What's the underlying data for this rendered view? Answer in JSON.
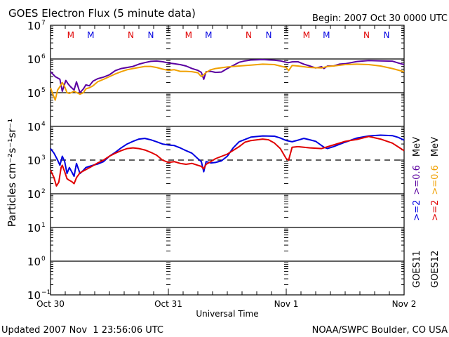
{
  "chart_data": {
    "type": "line",
    "title": "GOES Electron Flux (5 minute data)",
    "begin_label": "Begin: 2007 Oct 30 0000 UTC",
    "xlabel": "Universal Time",
    "ylabel": "Particles cm⁻²s⁻¹sr⁻¹",
    "x_unit": "days since 2007 Oct 30 0000 UTC",
    "xlim": [
      0,
      3
    ],
    "x_ticks": [
      {
        "value": 0,
        "label": "Oct 30"
      },
      {
        "value": 1,
        "label": "Oct 31"
      },
      {
        "value": 2,
        "label": "Nov 1"
      },
      {
        "value": 3,
        "label": "Nov 2"
      }
    ],
    "yscale": "log",
    "ylim_exponent": [
      -1,
      7
    ],
    "y_ticks": [
      {
        "exp": "7",
        "value": 10000000
      },
      {
        "exp": "6",
        "value": 1000000
      },
      {
        "exp": "5",
        "value": 100000
      },
      {
        "exp": "4",
        "value": 10000
      },
      {
        "exp": "3",
        "value": 1000
      },
      {
        "exp": "2",
        "value": 100
      },
      {
        "exp": "1",
        "value": 10
      },
      {
        "exp": "0",
        "value": 1
      },
      {
        "exp": "−1",
        "value": 0.1
      }
    ],
    "grid": "horizontal lines at each decade; dashed threshold at 1000",
    "threshold": {
      "value": 1000,
      "style": "dashed"
    },
    "annotations": [
      {
        "text": "M",
        "day": 0.35,
        "color": "#e00000"
      },
      {
        "text": "M",
        "day": 0.52,
        "color": "#0000e0"
      },
      {
        "text": "N",
        "day": 0.86,
        "color": "#e00000"
      },
      {
        "text": "N",
        "day": 1.03,
        "color": "#0000e0"
      },
      {
        "text": "M",
        "day": 1.35,
        "color": "#e00000"
      },
      {
        "text": "M",
        "day": 1.52,
        "color": "#0000e0"
      },
      {
        "text": "N",
        "day": 1.86,
        "color": "#e00000"
      },
      {
        "text": "N",
        "day": 2.03,
        "color": "#0000e0"
      },
      {
        "text": "M",
        "day": 2.35,
        "color": "#e00000"
      },
      {
        "text": "M",
        "day": 2.52,
        "color": "#0000e0"
      },
      {
        "text": "N",
        "day": 2.86,
        "color": "#e00000"
      },
      {
        "text": "N",
        "day": 3.03,
        "color": "#0000e0"
      }
    ],
    "legend": {
      "placement": "right",
      "groups": [
        {
          "satellite": "GOES11",
          "hi": ">=2",
          "hi_color": "#0000e0",
          "lo": ">=0.6",
          "lo_color": "#5a00a0",
          "unit": "MeV"
        },
        {
          "satellite": "GOES12",
          "hi": ">=2",
          "hi_color": "#e00000",
          "lo": ">=0.6",
          "lo_color": "#f0a000",
          "unit": "MeV"
        }
      ]
    },
    "series": [
      {
        "name": "GOES11 >=0.6 MeV",
        "color": "#5a00a0",
        "x": [
          0,
          0.04,
          0.08,
          0.1,
          0.13,
          0.15,
          0.17,
          0.2,
          0.22,
          0.25,
          0.28,
          0.3,
          0.33,
          0.36,
          0.4,
          0.45,
          0.5,
          0.55,
          0.6,
          0.65,
          0.7,
          0.75,
          0.8,
          0.85,
          0.9,
          0.95,
          1.0,
          1.05,
          1.1,
          1.15,
          1.2,
          1.25,
          1.28,
          1.3,
          1.32,
          1.36,
          1.4,
          1.45,
          1.5,
          1.55,
          1.6,
          1.65,
          1.7,
          1.8,
          1.9,
          1.95,
          2.0,
          2.02,
          2.05,
          2.1,
          2.15,
          2.2,
          2.25,
          2.3,
          2.32,
          2.35,
          2.4,
          2.45,
          2.5,
          2.6,
          2.7,
          2.8,
          2.9,
          2.95,
          3.0
        ],
        "y": [
          420000,
          300000,
          250000,
          110000,
          230000,
          180000,
          150000,
          120000,
          210000,
          100000,
          130000,
          170000,
          160000,
          220000,
          260000,
          290000,
          340000,
          450000,
          520000,
          560000,
          600000,
          700000,
          780000,
          850000,
          870000,
          830000,
          760000,
          720000,
          680000,
          620000,
          520000,
          460000,
          400000,
          250000,
          420000,
          430000,
          400000,
          410000,
          520000,
          640000,
          800000,
          880000,
          930000,
          960000,
          920000,
          880000,
          800000,
          780000,
          820000,
          830000,
          700000,
          620000,
          540000,
          590000,
          520000,
          620000,
          620000,
          700000,
          720000,
          840000,
          900000,
          880000,
          860000,
          760000,
          680000
        ]
      },
      {
        "name": "GOES12 >=0.6 MeV",
        "color": "#f0a000",
        "x": [
          0,
          0.02,
          0.04,
          0.06,
          0.08,
          0.1,
          0.12,
          0.14,
          0.16,
          0.2,
          0.25,
          0.28,
          0.3,
          0.33,
          0.36,
          0.4,
          0.45,
          0.5,
          0.55,
          0.6,
          0.65,
          0.7,
          0.75,
          0.8,
          0.85,
          0.9,
          0.95,
          1.0,
          1.05,
          1.1,
          1.15,
          1.2,
          1.25,
          1.28,
          1.3,
          1.32,
          1.36,
          1.4,
          1.5,
          1.6,
          1.7,
          1.8,
          1.9,
          2.0,
          2.02,
          2.05,
          2.1,
          2.2,
          2.3,
          2.35,
          2.4,
          2.5,
          2.6,
          2.7,
          2.8,
          2.9,
          3.0
        ],
        "y": [
          140000,
          90000,
          60000,
          120000,
          150000,
          200000,
          150000,
          100000,
          95000,
          110000,
          90000,
          100000,
          130000,
          140000,
          160000,
          210000,
          250000,
          300000,
          360000,
          420000,
          480000,
          520000,
          560000,
          600000,
          600000,
          560000,
          500000,
          460000,
          480000,
          430000,
          430000,
          420000,
          390000,
          300000,
          340000,
          400000,
          480000,
          520000,
          580000,
          620000,
          660000,
          700000,
          680000,
          560000,
          450000,
          640000,
          620000,
          560000,
          540000,
          600000,
          620000,
          680000,
          700000,
          680000,
          620000,
          520000,
          420000
        ]
      },
      {
        "name": "GOES11 >=2 MeV",
        "color": "#0000e0",
        "x": [
          0,
          0.03,
          0.06,
          0.08,
          0.1,
          0.12,
          0.14,
          0.16,
          0.18,
          0.2,
          0.22,
          0.25,
          0.28,
          0.3,
          0.33,
          0.36,
          0.4,
          0.45,
          0.5,
          0.55,
          0.6,
          0.65,
          0.7,
          0.75,
          0.8,
          0.85,
          0.9,
          0.95,
          1.0,
          1.05,
          1.1,
          1.15,
          1.2,
          1.25,
          1.28,
          1.3,
          1.32,
          1.36,
          1.4,
          1.45,
          1.5,
          1.55,
          1.6,
          1.7,
          1.8,
          1.9,
          1.95,
          2.0,
          2.05,
          2.1,
          2.15,
          2.2,
          2.25,
          2.3,
          2.32,
          2.35,
          2.4,
          2.5,
          2.6,
          2.7,
          2.8,
          2.9,
          2.95,
          3.0
        ],
        "y": [
          2200,
          1600,
          1000,
          700,
          1300,
          900,
          400,
          600,
          450,
          330,
          800,
          400,
          500,
          600,
          650,
          700,
          760,
          900,
          1300,
          1700,
          2300,
          3000,
          3600,
          4200,
          4400,
          4000,
          3500,
          3000,
          2800,
          2700,
          2300,
          1900,
          1600,
          1100,
          900,
          450,
          900,
          820,
          850,
          950,
          1300,
          2300,
          3500,
          4800,
          5200,
          5100,
          4500,
          3800,
          3500,
          3900,
          4400,
          4000,
          3600,
          2700,
          2400,
          2200,
          2500,
          3400,
          4500,
          5200,
          5500,
          5300,
          4700,
          3900
        ]
      },
      {
        "name": "GOES12 >=2 MeV",
        "color": "#e00000",
        "x": [
          0,
          0.03,
          0.05,
          0.07,
          0.09,
          0.1,
          0.12,
          0.14,
          0.16,
          0.18,
          0.2,
          0.22,
          0.25,
          0.3,
          0.35,
          0.4,
          0.45,
          0.5,
          0.55,
          0.6,
          0.65,
          0.7,
          0.75,
          0.8,
          0.85,
          0.9,
          0.95,
          1.0,
          1.05,
          1.1,
          1.15,
          1.2,
          1.25,
          1.28,
          1.3,
          1.32,
          1.36,
          1.4,
          1.5,
          1.6,
          1.65,
          1.7,
          1.8,
          1.85,
          1.9,
          1.95,
          2.0,
          2.02,
          2.05,
          2.1,
          2.2,
          2.3,
          2.4,
          2.5,
          2.6,
          2.7,
          2.8,
          2.9,
          3.0
        ],
        "y": [
          500,
          300,
          170,
          220,
          600,
          700,
          450,
          280,
          250,
          230,
          200,
          300,
          420,
          520,
          650,
          820,
          1000,
          1300,
          1600,
          1900,
          2200,
          2300,
          2200,
          2000,
          1700,
          1400,
          1000,
          850,
          900,
          800,
          750,
          800,
          700,
          650,
          550,
          750,
          900,
          1100,
          1500,
          2500,
          3400,
          3800,
          4200,
          4000,
          3200,
          2200,
          1100,
          1000,
          2400,
          2500,
          2300,
          2200,
          2800,
          3600,
          4100,
          5000,
          4200,
          3200,
          1900
        ]
      }
    ]
  },
  "footer": {
    "updated": "Updated 2007 Nov  1 23:56:06 UTC",
    "credit": "NOAA/SWPC Boulder, CO USA"
  }
}
